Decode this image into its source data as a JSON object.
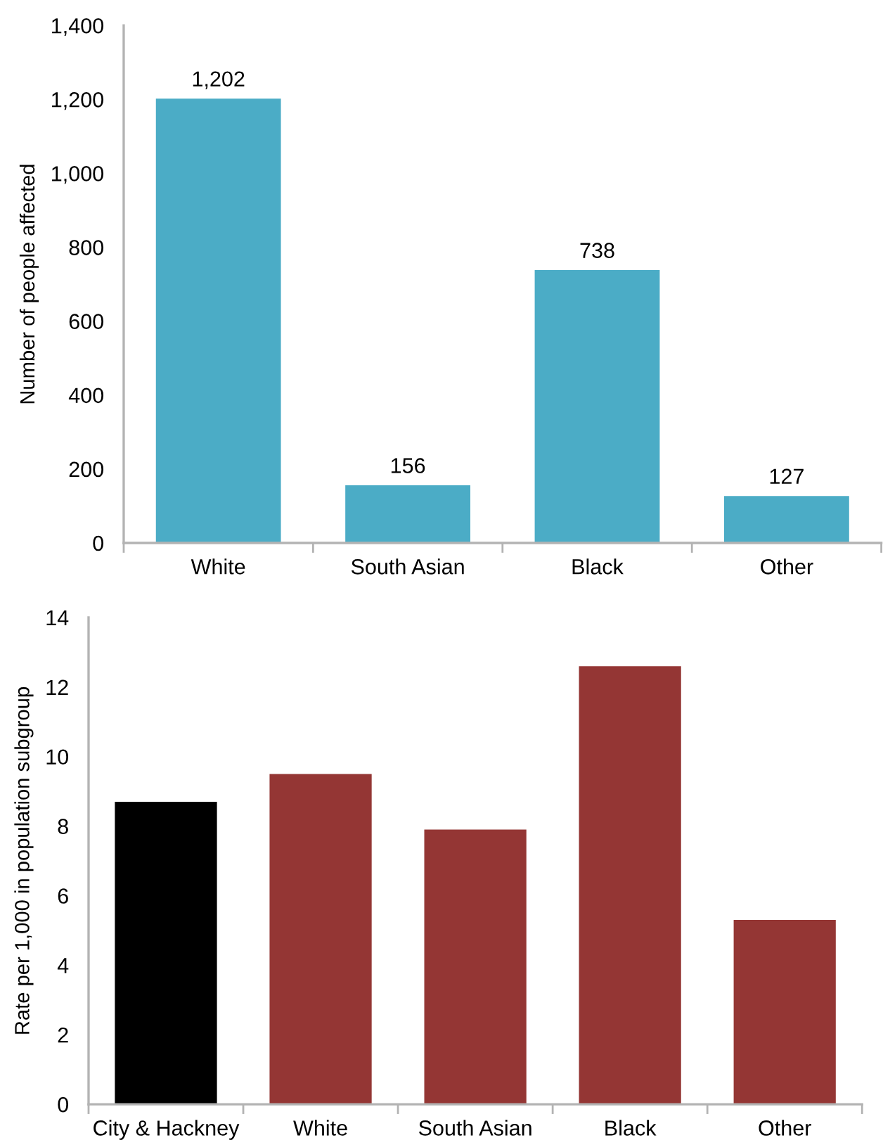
{
  "chart_data": [
    {
      "type": "bar",
      "categories": [
        "White",
        "South Asian",
        "Black",
        "Other"
      ],
      "values": [
        1202,
        156,
        738,
        127
      ],
      "value_labels": [
        "1,202",
        "156",
        "738",
        "127"
      ],
      "color": "#4bacc6",
      "ylabel": "Number of people affected",
      "ylim": [
        0,
        1400
      ],
      "yticks": [
        0,
        200,
        400,
        600,
        800,
        {
          "value": 1000,
          "label": "1,000"
        },
        {
          "value": 1200,
          "label": "1,200"
        },
        {
          "value": 1400,
          "label": "1,400"
        }
      ]
    },
    {
      "type": "bar",
      "categories": [
        "City & Hackney",
        "White",
        "South Asian",
        "Black",
        "Other"
      ],
      "values": [
        8.7,
        9.5,
        7.9,
        12.6,
        5.3
      ],
      "colors": [
        "#000000",
        "#943634",
        "#943634",
        "#943634",
        "#943634"
      ],
      "ylabel": "Rate per 1,000 in population subgroup",
      "ylim": [
        0,
        14
      ],
      "yticks": [
        0,
        2,
        4,
        6,
        8,
        10,
        12,
        14
      ]
    }
  ]
}
